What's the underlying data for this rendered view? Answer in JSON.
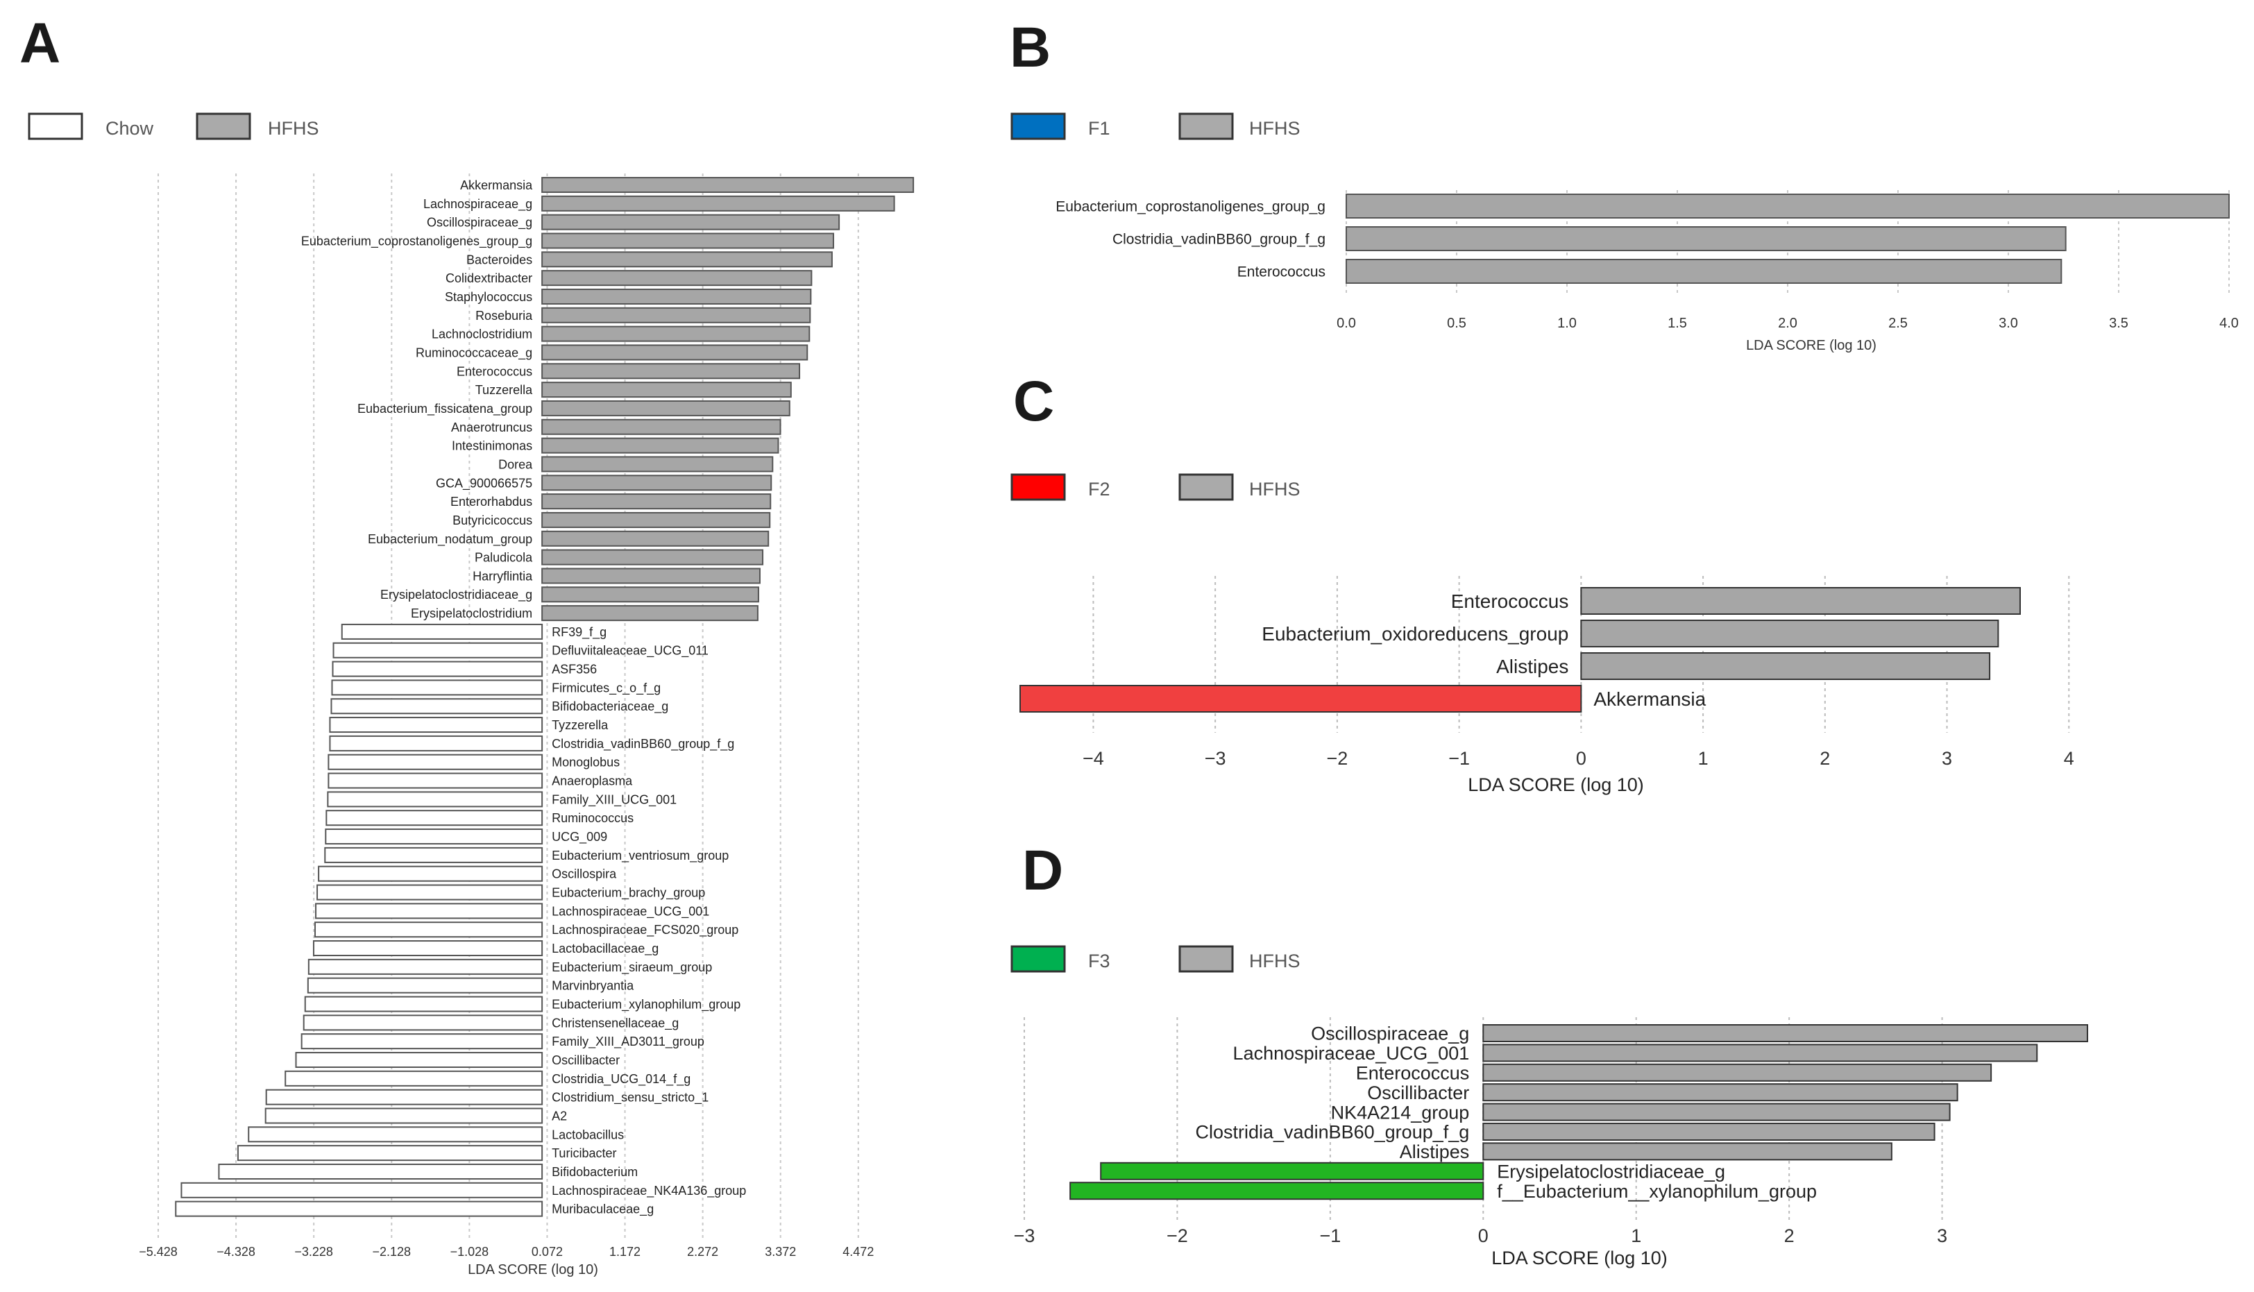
{
  "figure": {
    "axis_label": "LDA SCORE (log 10)"
  },
  "chart_data": [
    {
      "panel": "A",
      "type": "bar",
      "orientation": "horizontal",
      "xlabel": "LDA SCORE (log 10)",
      "xlim": [
        -5.428,
        5.2
      ],
      "ticks": [
        -5.428,
        -4.328,
        -3.228,
        -2.128,
        -1.028,
        0.072,
        1.172,
        2.272,
        3.372,
        4.472
      ],
      "tick_labels": [
        "−5.428",
        "−4.328",
        "−3.228",
        "−2.128",
        "−1.028",
        "0.072",
        "1.172",
        "2.272",
        "3.372",
        "4.472"
      ],
      "legend": [
        {
          "label": "Chow",
          "color": "#ffffff"
        },
        {
          "label": "HFHS",
          "color": "#a6a6a6"
        }
      ],
      "series": [
        {
          "name": "HFHS",
          "color": "#a6a6a6",
          "categories": [
            "Akkermansia",
            "Lachnospiraceae_g",
            "Oscillospiraceae_g",
            "Eubacterium_coprostanoligenes_group_g",
            "Bacteroides",
            "Colidextribacter",
            "Staphylococcus",
            "Roseburia",
            "Lachnoclostridium",
            "Ruminococcaceae_g",
            "Enterococcus",
            "Tuzzerella",
            "Eubacterium_fissicatena_group",
            "Anaerotruncus",
            "Intestinimonas",
            "Dorea",
            "GCA_900066575",
            "Enterorhabdus",
            "Butyricicoccus",
            "Eubacterium_nodatum_group",
            "Paludicola",
            "Harryflintia",
            "Erysipelatoclostridiaceae_g",
            "Erysipelatoclostridium"
          ],
          "values": [
            5.25,
            4.98,
            4.2,
            4.12,
            4.1,
            3.81,
            3.8,
            3.79,
            3.78,
            3.75,
            3.64,
            3.52,
            3.5,
            3.37,
            3.34,
            3.26,
            3.24,
            3.23,
            3.22,
            3.2,
            3.12,
            3.08,
            3.06,
            3.05
          ]
        },
        {
          "name": "Chow",
          "color": "#ffffff",
          "categories": [
            "RF39_f_g",
            "Defluviitaleaceae_UCG_011",
            "ASF356",
            "Firmicutes_c_o_f_g",
            "Bifidobacteriaceae_g",
            "Tyzzerella",
            "Clostridia_vadinBB60_group_f_g",
            "Monoglobus",
            "Anaeroplasma",
            "Family_XIII_UCG_001",
            "Ruminococcus",
            "UCG_009",
            "Eubacterium_ventriosum_group",
            "Oscillospira",
            "Eubacterium_brachy_group",
            "Lachnospiraceae_UCG_001",
            "Lachnospiraceae_FCS020_group",
            "Lactobacillaceae_g",
            "Eubacterium_siraeum_group",
            "Marvinbryantia",
            "Eubacterium_xylanophilum_group",
            "Christensenellaceae_g",
            "Family_XIII_AD3011_group",
            "Oscillibacter",
            "Clostridia_UCG_014_f_g",
            "Clostridium_sensu_stricto_1",
            "A2",
            "Lactobacillus",
            "Turicibacter",
            "Bifidobacterium",
            "Lachnospiraceae_NK4A136_group",
            "Muribaculaceae_g"
          ],
          "values": [
            -2.83,
            -2.95,
            -2.96,
            -2.97,
            -2.98,
            -3.0,
            -3.0,
            -3.02,
            -3.02,
            -3.03,
            -3.05,
            -3.06,
            -3.07,
            -3.16,
            -3.18,
            -3.2,
            -3.21,
            -3.23,
            -3.3,
            -3.31,
            -3.35,
            -3.37,
            -3.4,
            -3.48,
            -3.63,
            -3.9,
            -3.91,
            -4.15,
            -4.3,
            -4.57,
            -5.1,
            -5.18
          ]
        }
      ]
    },
    {
      "panel": "B",
      "type": "bar",
      "orientation": "horizontal",
      "xlabel": "LDA SCORE (log 10)",
      "xlim": [
        0,
        4.0
      ],
      "ticks": [
        0,
        0.5,
        1.0,
        1.5,
        2.0,
        2.5,
        3.0,
        3.5,
        4.0
      ],
      "tick_labels": [
        "0.0",
        "0.5",
        "1.0",
        "1.5",
        "2.0",
        "2.5",
        "3.0",
        "3.5",
        "4.0"
      ],
      "legend": [
        {
          "label": "F1",
          "color": "#0070c0"
        },
        {
          "label": "HFHS",
          "color": "#a6a6a6"
        }
      ],
      "series": [
        {
          "name": "HFHS",
          "color": "#a6a6a6",
          "categories": [
            "Eubacterium_coprostanoligenes_group_g",
            "Clostridia_vadinBB60_group_f_g",
            "Enterococcus"
          ],
          "values": [
            4.0,
            3.26,
            3.24
          ]
        }
      ]
    },
    {
      "panel": "C",
      "type": "bar",
      "orientation": "horizontal",
      "xlabel": "LDA SCORE (log 10)",
      "xlim": [
        -4.6,
        4.3
      ],
      "ticks": [
        -4,
        -3,
        -2,
        -1,
        0,
        1,
        2,
        3,
        4
      ],
      "tick_labels": [
        "−4",
        "−3",
        "−2",
        "−1",
        "0",
        "1",
        "2",
        "3",
        "4"
      ],
      "legend": [
        {
          "label": "F2",
          "color": "#ff0000"
        },
        {
          "label": "HFHS",
          "color": "#a6a6a6"
        }
      ],
      "series": [
        {
          "name": "HFHS",
          "color": "#a6a6a6",
          "categories": [
            "Enterococcus",
            "Eubacterium_oxidoreducens_group",
            "Alistipes"
          ],
          "values": [
            3.6,
            3.42,
            3.35
          ]
        },
        {
          "name": "F2",
          "color": "#f04040",
          "categories": [
            "Akkermansia"
          ],
          "values": [
            -4.6
          ]
        }
      ]
    },
    {
      "panel": "D",
      "type": "bar",
      "orientation": "horizontal",
      "xlabel": "LDA SCORE (log 10)",
      "xlim": [
        -3,
        3.95
      ],
      "ticks": [
        -3,
        -2,
        -1,
        0,
        1,
        2,
        3
      ],
      "tick_labels": [
        "−3",
        "−2",
        "−1",
        "0",
        "1",
        "2",
        "3"
      ],
      "legend": [
        {
          "label": "F3",
          "color": "#00b050"
        },
        {
          "label": "HFHS",
          "color": "#a6a6a6"
        }
      ],
      "series": [
        {
          "name": "HFHS",
          "color": "#a6a6a6",
          "categories": [
            "Oscillospiraceae_g",
            "Lachnospiraceae_UCG_001",
            "Enterococcus",
            "Oscillibacter",
            "NK4A214_group",
            "Clostridia_vadinBB60_group_f_g",
            "Alistipes"
          ],
          "values": [
            3.95,
            3.62,
            3.32,
            3.1,
            3.05,
            2.95,
            2.67
          ]
        },
        {
          "name": "F3",
          "color": "#22b522",
          "categories": [
            "Erysipelatoclostridiaceae_g",
            "f__Eubacterium__xylanophilum_group"
          ],
          "values": [
            -2.5,
            -2.7
          ]
        }
      ]
    }
  ]
}
